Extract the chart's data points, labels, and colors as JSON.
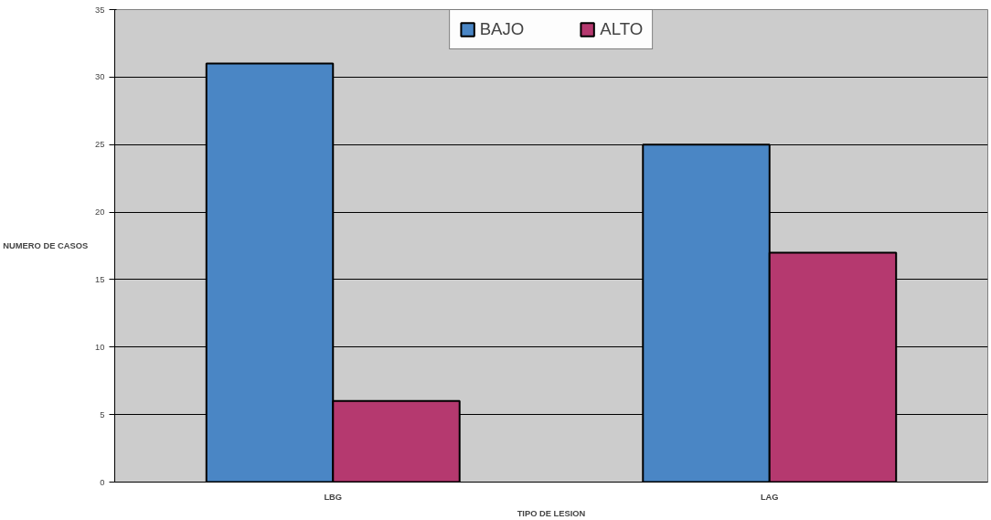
{
  "chart_data": {
    "type": "bar",
    "xlabel": "TIPO DE LESION",
    "ylabel": "NUMERO DE CASOS",
    "categories": [
      "LBG",
      "LAG"
    ],
    "series": [
      {
        "name": "BAJO",
        "color": "#4a86c5",
        "values": [
          31,
          25
        ]
      },
      {
        "name": "ALTO",
        "color": "#b5396f",
        "values": [
          6,
          17
        ]
      }
    ],
    "ylim": [
      0,
      35
    ],
    "yticks": [
      0,
      5,
      10,
      15,
      20,
      25,
      30,
      35
    ],
    "grid": "y",
    "legend": "top"
  }
}
